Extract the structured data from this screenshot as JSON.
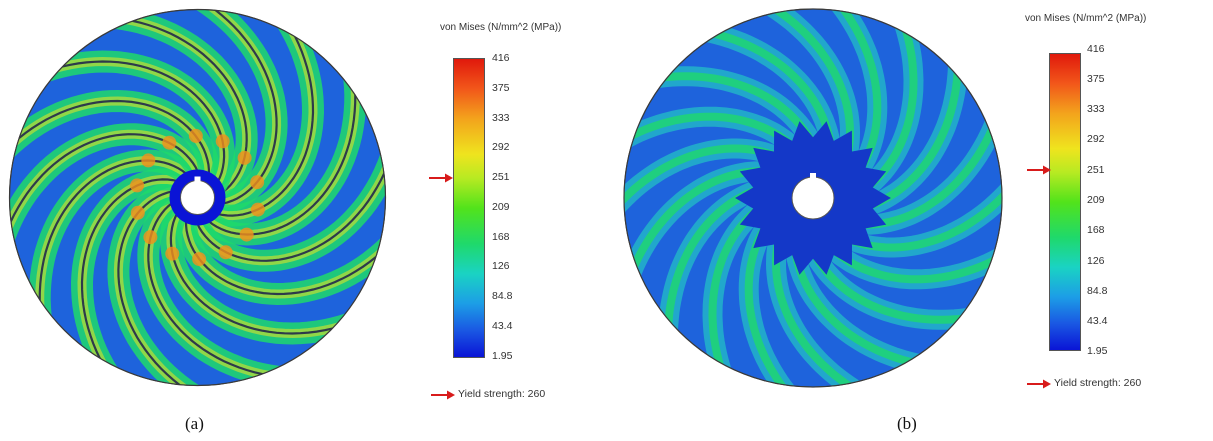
{
  "panels": [
    {
      "caption": "(a)",
      "legend_title": "von Mises (N/mm^2 (MPa))",
      "ticks": [
        "416",
        "375",
        "333",
        "292",
        "251",
        "209",
        "168",
        "126",
        "84.8",
        "43.4",
        "1.95"
      ],
      "yield_label": "Yield strength: 260",
      "blades": 14
    },
    {
      "caption": "(b)",
      "legend_title": "von Mises (N/mm^2 (MPa))",
      "ticks": [
        "416",
        "375",
        "333",
        "292",
        "251",
        "209",
        "168",
        "126",
        "84.8",
        "43.4",
        "1.95"
      ],
      "yield_label": "Yield strength: 260",
      "blades": 18
    }
  ],
  "colors": {
    "max": "#e0190c",
    "high": "#efe41e",
    "mid": "#1fd96b",
    "low": "#1a58e3",
    "min": "#0a14d6",
    "yield_arrow": "#d81b1b"
  }
}
